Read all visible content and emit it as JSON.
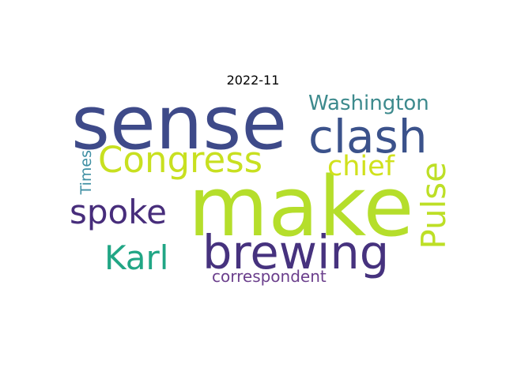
{
  "chart_data": {
    "type": "wordcloud",
    "title": "2022-11",
    "words": [
      {
        "text": "make",
        "weight": 1.0,
        "color": "#b5de2b"
      },
      {
        "text": "sense",
        "weight": 0.9,
        "color": "#3e4a89"
      },
      {
        "text": "brewing",
        "weight": 0.57,
        "color": "#46327e"
      },
      {
        "text": "clash",
        "weight": 0.56,
        "color": "#3b528b"
      },
      {
        "text": "Congress",
        "weight": 0.43,
        "color": "#c8e020"
      },
      {
        "text": "spoke",
        "weight": 0.4,
        "color": "#472d7b"
      },
      {
        "text": "Karl",
        "weight": 0.4,
        "color": "#21a685"
      },
      {
        "text": "Pulse",
        "weight": 0.4,
        "color": "#bddf26"
      },
      {
        "text": "chief",
        "weight": 0.34,
        "color": "#d0e11c"
      },
      {
        "text": "Washington",
        "weight": 0.25,
        "color": "#3d8a8d"
      },
      {
        "text": "correspondent",
        "weight": 0.19,
        "color": "#6b3f8c"
      },
      {
        "text": "Times",
        "weight": 0.18,
        "color": "#3f8fa3"
      }
    ]
  }
}
